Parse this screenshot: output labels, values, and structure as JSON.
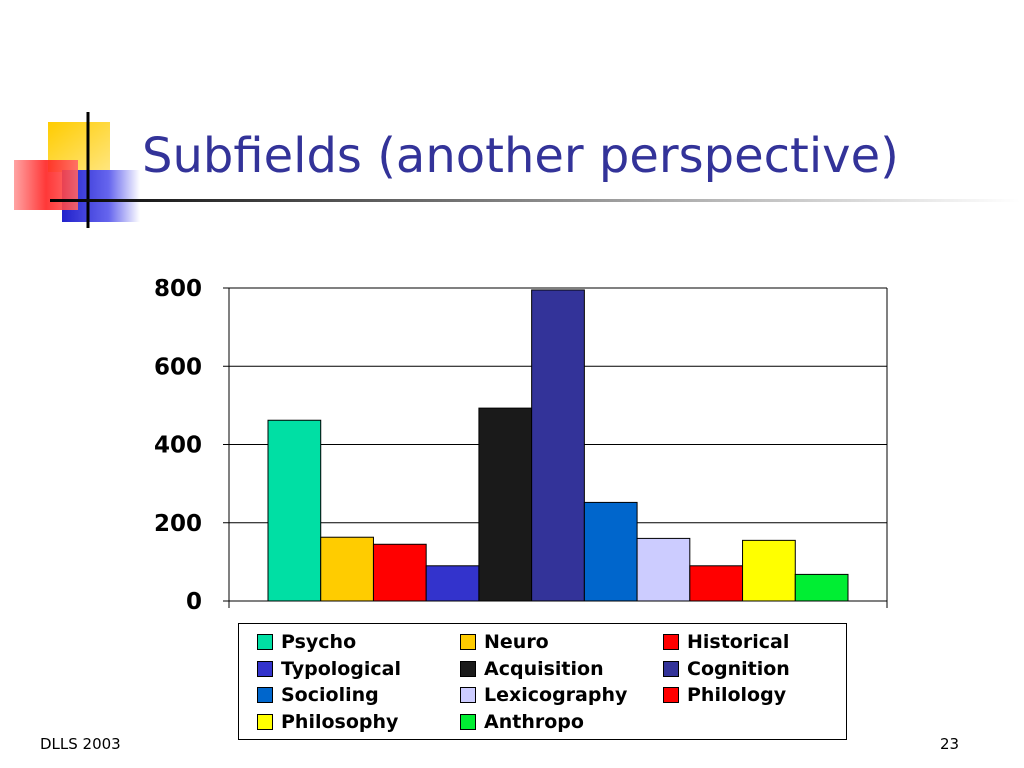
{
  "slide": {
    "title": "Subfields (another perspective)",
    "footer_left": "DLLS 2003",
    "page_number": "23"
  },
  "chart_data": {
    "type": "bar",
    "title": "",
    "xlabel": "",
    "ylabel": "",
    "ylim": [
      0,
      800
    ],
    "yticks": [
      "0",
      "200",
      "400",
      "600",
      "800"
    ],
    "grid": true,
    "legend_position": "bottom",
    "categories": [
      "Psycho",
      "Neuro",
      "Historical",
      "Typological",
      "Acquisition",
      "Cognition",
      "Socioling",
      "Lexicography",
      "Philology",
      "Philosophy",
      "Anthropo"
    ],
    "values": [
      462,
      163,
      145,
      90,
      493,
      795,
      252,
      160,
      90,
      155,
      68
    ],
    "colors": [
      "#00dfa4",
      "#ffcc00",
      "#ff0000",
      "#3333cc",
      "#1a1a1a",
      "#333399",
      "#0066cc",
      "#ccccff",
      "#ff0000",
      "#ffff00",
      "#00ee33"
    ]
  }
}
